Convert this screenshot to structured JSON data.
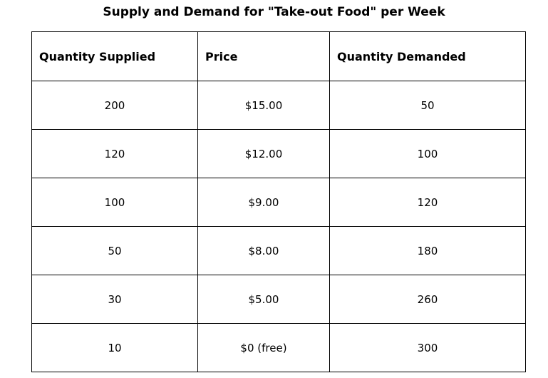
{
  "title": "Supply and Demand for \"Take-out Food\" per Week",
  "table": {
    "headers": [
      "Quantity Supplied",
      "Price",
      "Quantity Demanded"
    ],
    "rows": [
      [
        "200",
        "$15.00",
        "50"
      ],
      [
        "120",
        "$12.00",
        "100"
      ],
      [
        "100",
        "$9.00",
        "120"
      ],
      [
        "50",
        "$8.00",
        "180"
      ],
      [
        "30",
        "$5.00",
        "260"
      ],
      [
        "10",
        "$0 (free)",
        "300"
      ]
    ]
  },
  "colors": {
    "border": "#000000",
    "text": "#000000",
    "background": "#ffffff"
  }
}
